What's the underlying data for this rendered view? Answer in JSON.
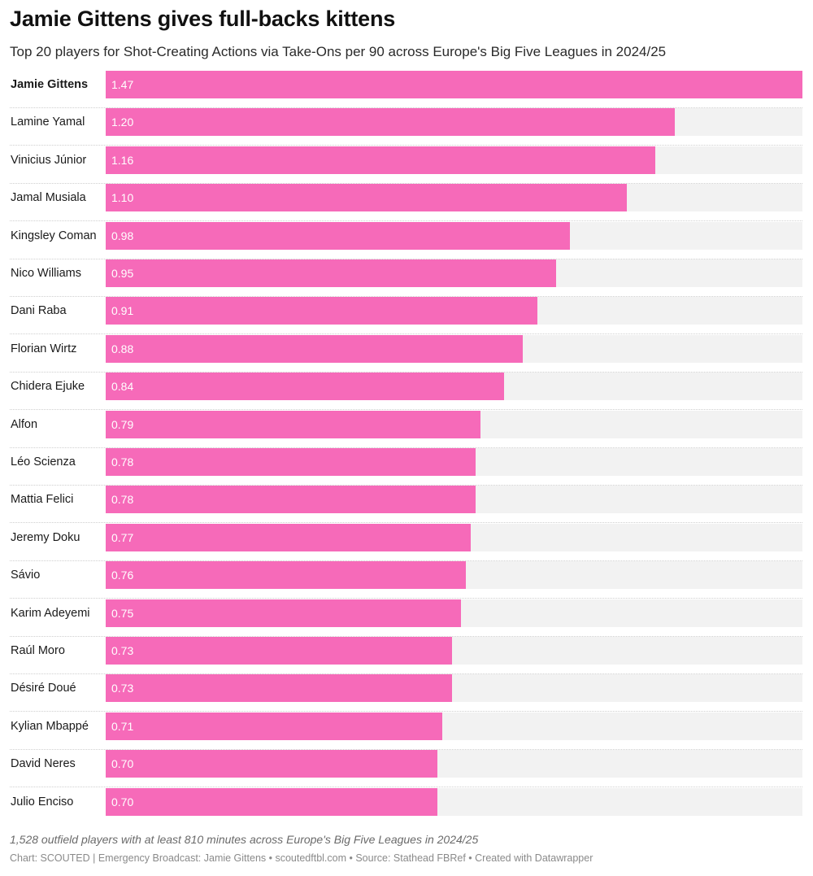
{
  "header": {
    "title": "Jamie Gittens gives full-backs kittens",
    "subtitle": "Top 20 players for Shot-Creating Actions via Take-Ons per 90 across Europe's Big Five Leagues in 2024/25"
  },
  "chart_data": {
    "type": "bar",
    "orientation": "horizontal",
    "title": "Jamie Gittens gives full-backs kittens",
    "subtitle": "Top 20 players for Shot-Creating Actions via Take-Ons per 90 across Europe's Big Five Leagues in 2024/25",
    "categories": [
      "Jamie Gittens",
      "Lamine Yamal",
      "Vinicius Júnior",
      "Jamal Musiala",
      "Kingsley Coman",
      "Nico Williams",
      "Dani Raba",
      "Florian Wirtz",
      "Chidera Ejuke",
      "Alfon",
      "Léo Scienza",
      "Mattia Felici",
      "Jeremy Doku",
      "Sávio",
      "Karim Adeyemi",
      "Raúl Moro",
      "Désiré Doué",
      "Kylian Mbappé",
      "David Neres",
      "Julio Enciso"
    ],
    "values": [
      1.47,
      1.2,
      1.16,
      1.1,
      0.98,
      0.95,
      0.91,
      0.88,
      0.84,
      0.79,
      0.78,
      0.78,
      0.77,
      0.76,
      0.75,
      0.73,
      0.73,
      0.71,
      0.7,
      0.7
    ],
    "value_labels": [
      "1.47",
      "1.20",
      "1.16",
      "1.10",
      "0.98",
      "0.95",
      "0.91",
      "0.88",
      "0.84",
      "0.79",
      "0.78",
      "0.78",
      "0.77",
      "0.76",
      "0.75",
      "0.73",
      "0.73",
      "0.71",
      "0.70",
      "0.70"
    ],
    "highlighted": "Jamie Gittens",
    "xlim": [
      0,
      1.47
    ],
    "xlabel": "",
    "ylabel": "",
    "grid": false,
    "legend": "none",
    "colors": {
      "bar": "#f66ab9",
      "track": "#f2f2f2",
      "value_text": "#ffffff"
    }
  },
  "footer": {
    "note": "1,528 outfield players with at least 810 minutes across Europe's Big Five Leagues in 2024/25",
    "credits": "Chart: SCOUTED | Emergency Broadcast: Jamie Gittens • scoutedftbl.com • Source: Stathead FBRef • Created with Datawrapper"
  }
}
